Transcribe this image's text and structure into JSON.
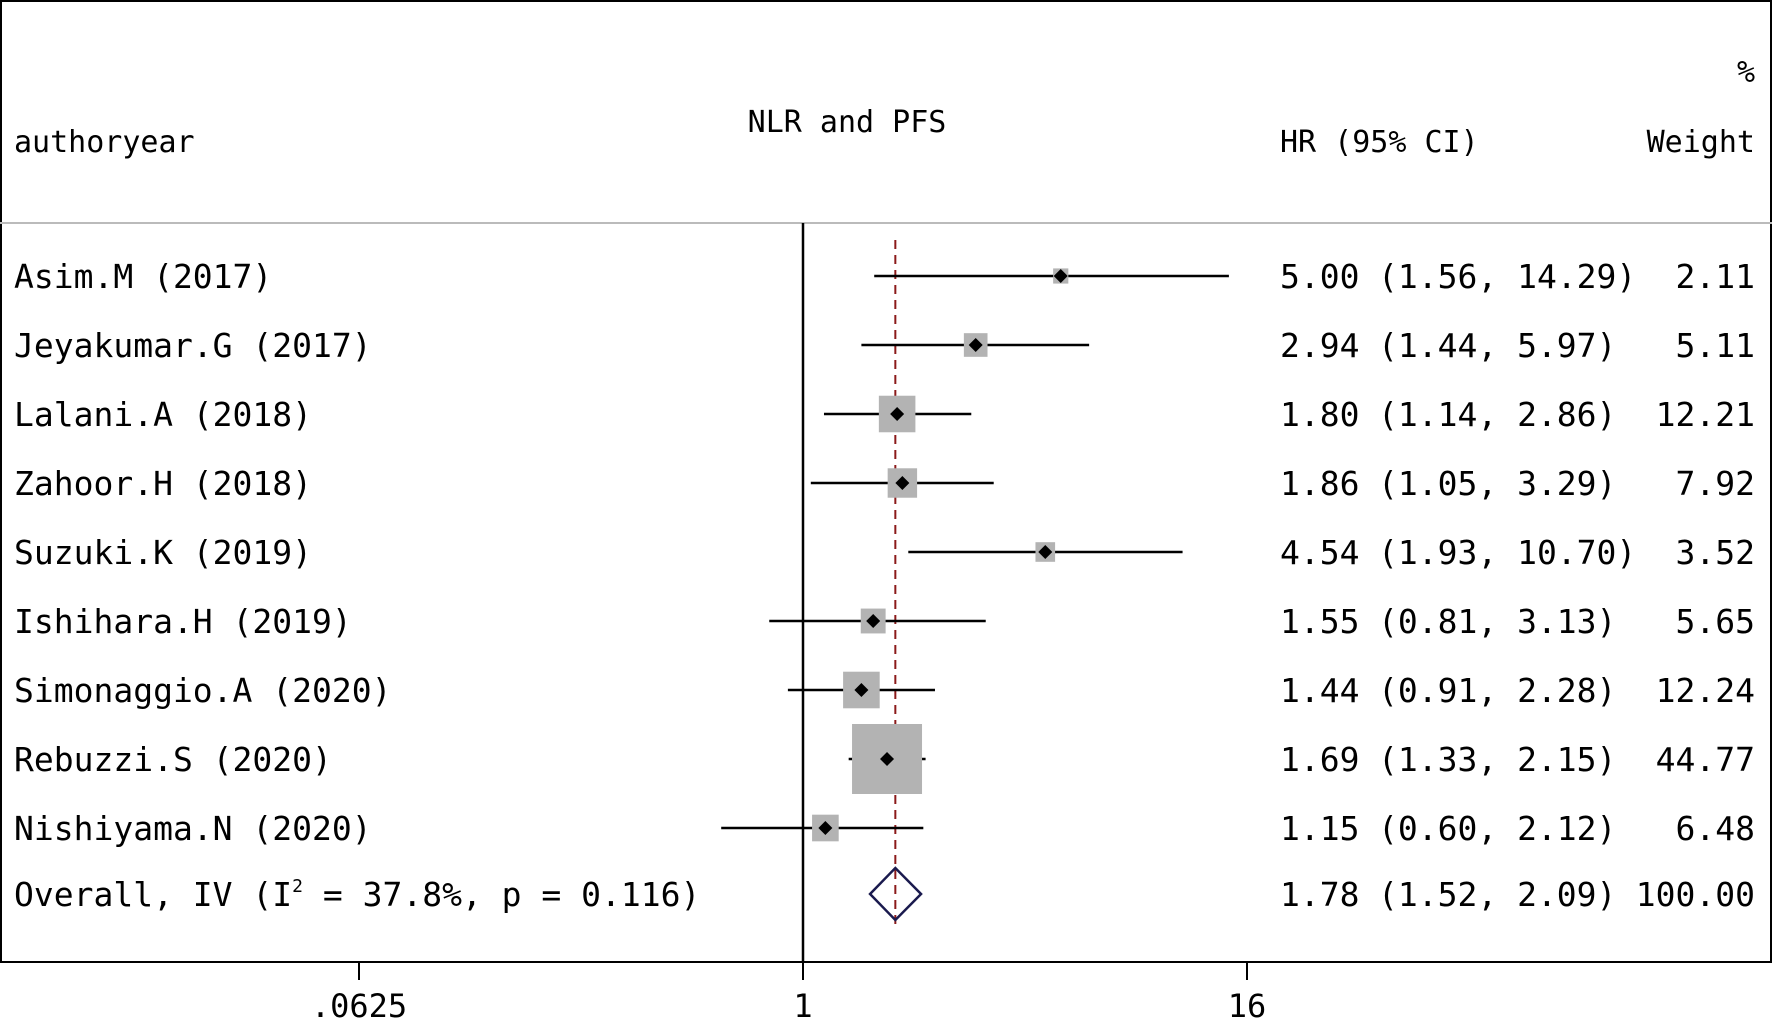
{
  "chart_data": {
    "type": "forest",
    "title": "NLR and PFS",
    "columns": {
      "study": "authoryear",
      "effect": "HR (95% CI)",
      "weight_top": "%",
      "weight_bottom": "Weight"
    },
    "x_axis": {
      "scale": "log",
      "ticks": [
        {
          "value": 0.0625,
          "label": ".0625"
        },
        {
          "value": 1,
          "label": "1"
        },
        {
          "value": 16,
          "label": "16"
        }
      ],
      "null_line": 1
    },
    "studies": [
      {
        "label": "Asim.M (2017)",
        "hr": 5.0,
        "lo": 1.56,
        "hi": 14.29,
        "hr_text": "5.00",
        "ci_text": "(1.56, 14.29)",
        "weight": 2.11,
        "weight_text": "2.11"
      },
      {
        "label": "Jeyakumar.G (2017)",
        "hr": 2.94,
        "lo": 1.44,
        "hi": 5.97,
        "hr_text": "2.94",
        "ci_text": "(1.44, 5.97)",
        "weight": 5.11,
        "weight_text": "5.11"
      },
      {
        "label": "Lalani.A (2018)",
        "hr": 1.8,
        "lo": 1.14,
        "hi": 2.86,
        "hr_text": "1.80",
        "ci_text": "(1.14, 2.86)",
        "weight": 12.21,
        "weight_text": "12.21"
      },
      {
        "label": "Zahoor.H (2018)",
        "hr": 1.86,
        "lo": 1.05,
        "hi": 3.29,
        "hr_text": "1.86",
        "ci_text": "(1.05, 3.29)",
        "weight": 7.92,
        "weight_text": "7.92"
      },
      {
        "label": "Suzuki.K (2019)",
        "hr": 4.54,
        "lo": 1.93,
        "hi": 10.7,
        "hr_text": "4.54",
        "ci_text": "(1.93, 10.70)",
        "weight": 3.52,
        "weight_text": "3.52"
      },
      {
        "label": "Ishihara.H (2019)",
        "hr": 1.55,
        "lo": 0.81,
        "hi": 3.13,
        "hr_text": "1.55",
        "ci_text": "(0.81, 3.13)",
        "weight": 5.65,
        "weight_text": "5.65"
      },
      {
        "label": "Simonaggio.A (2020)",
        "hr": 1.44,
        "lo": 0.91,
        "hi": 2.28,
        "hr_text": "1.44",
        "ci_text": "(0.91, 2.28)",
        "weight": 12.24,
        "weight_text": "12.24"
      },
      {
        "label": "Rebuzzi.S (2020)",
        "hr": 1.69,
        "lo": 1.33,
        "hi": 2.15,
        "hr_text": "1.69",
        "ci_text": "(1.33, 2.15)",
        "weight": 44.77,
        "weight_text": "44.77"
      },
      {
        "label": "Nishiyama.N (2020)",
        "hr": 1.15,
        "lo": 0.6,
        "hi": 2.12,
        "hr_text": "1.15",
        "ci_text": "(0.60, 2.12)",
        "weight": 6.48,
        "weight_text": "6.48"
      }
    ],
    "overall": {
      "label_prefix": "Overall, IV (I",
      "label_sup": "2",
      "label_suffix": " = 37.8%, p = 0.116)",
      "hr": 1.78,
      "lo": 1.52,
      "hi": 2.09,
      "hr_text": "1.78",
      "ci_text": "(1.52, 2.09)",
      "weight": 100.0,
      "weight_text": "100.00",
      "i_squared": 37.8,
      "p_value": 0.116
    },
    "colors": {
      "marker": "#000000",
      "weight_box": "#b3b3b3",
      "ci_line": "#000000",
      "pooled_line": "#8b1a1a",
      "diamond": "#1a1a4e",
      "border": "#000000"
    }
  }
}
